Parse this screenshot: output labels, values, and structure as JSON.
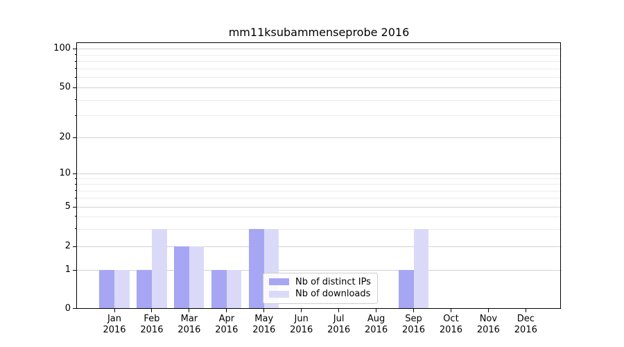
{
  "title": "mm11ksubammenseprobe 2016",
  "chart_data": {
    "type": "bar",
    "title": "mm11ksubammenseprobe 2016",
    "categories": [
      "Jan 2016",
      "Feb 2016",
      "Mar 2016",
      "Apr 2016",
      "May 2016",
      "Jun 2016",
      "Jul 2016",
      "Aug 2016",
      "Sep 2016",
      "Oct 2016",
      "Nov 2016",
      "Dec 2016"
    ],
    "series": [
      {
        "name": "Nb of distinct IPs",
        "color": "#a6a6f4",
        "values": [
          1,
          1,
          2,
          1,
          3,
          0,
          0,
          0,
          1,
          0,
          0,
          0
        ]
      },
      {
        "name": "Nb of downloads",
        "color": "#dadaf8",
        "values": [
          1,
          3,
          2,
          1,
          3,
          0,
          0,
          0,
          3,
          0,
          0,
          0
        ]
      }
    ],
    "xlabel": "",
    "ylabel": "",
    "yscale": "log-like (symlog with 0 baseline)",
    "ylim": [
      0,
      100
    ],
    "yticks_major": [
      0,
      1,
      2,
      5,
      10,
      20,
      50,
      100
    ],
    "yticks_minor": [
      3,
      4,
      6,
      7,
      8,
      9,
      30,
      40,
      60,
      70,
      80,
      90
    ],
    "grid": "horizontal major + minor gridlines on",
    "legend_position": "lower center, inside plot",
    "bar_layout": "two grouped bars per month"
  },
  "colors": {
    "distinct_ips_bar": "#a6a6f4",
    "downloads_bar": "#dadaf8",
    "grid_major": "#d2d2d2",
    "grid_minor": "#ececec",
    "axis": "#000000",
    "background": "#ffffff"
  }
}
